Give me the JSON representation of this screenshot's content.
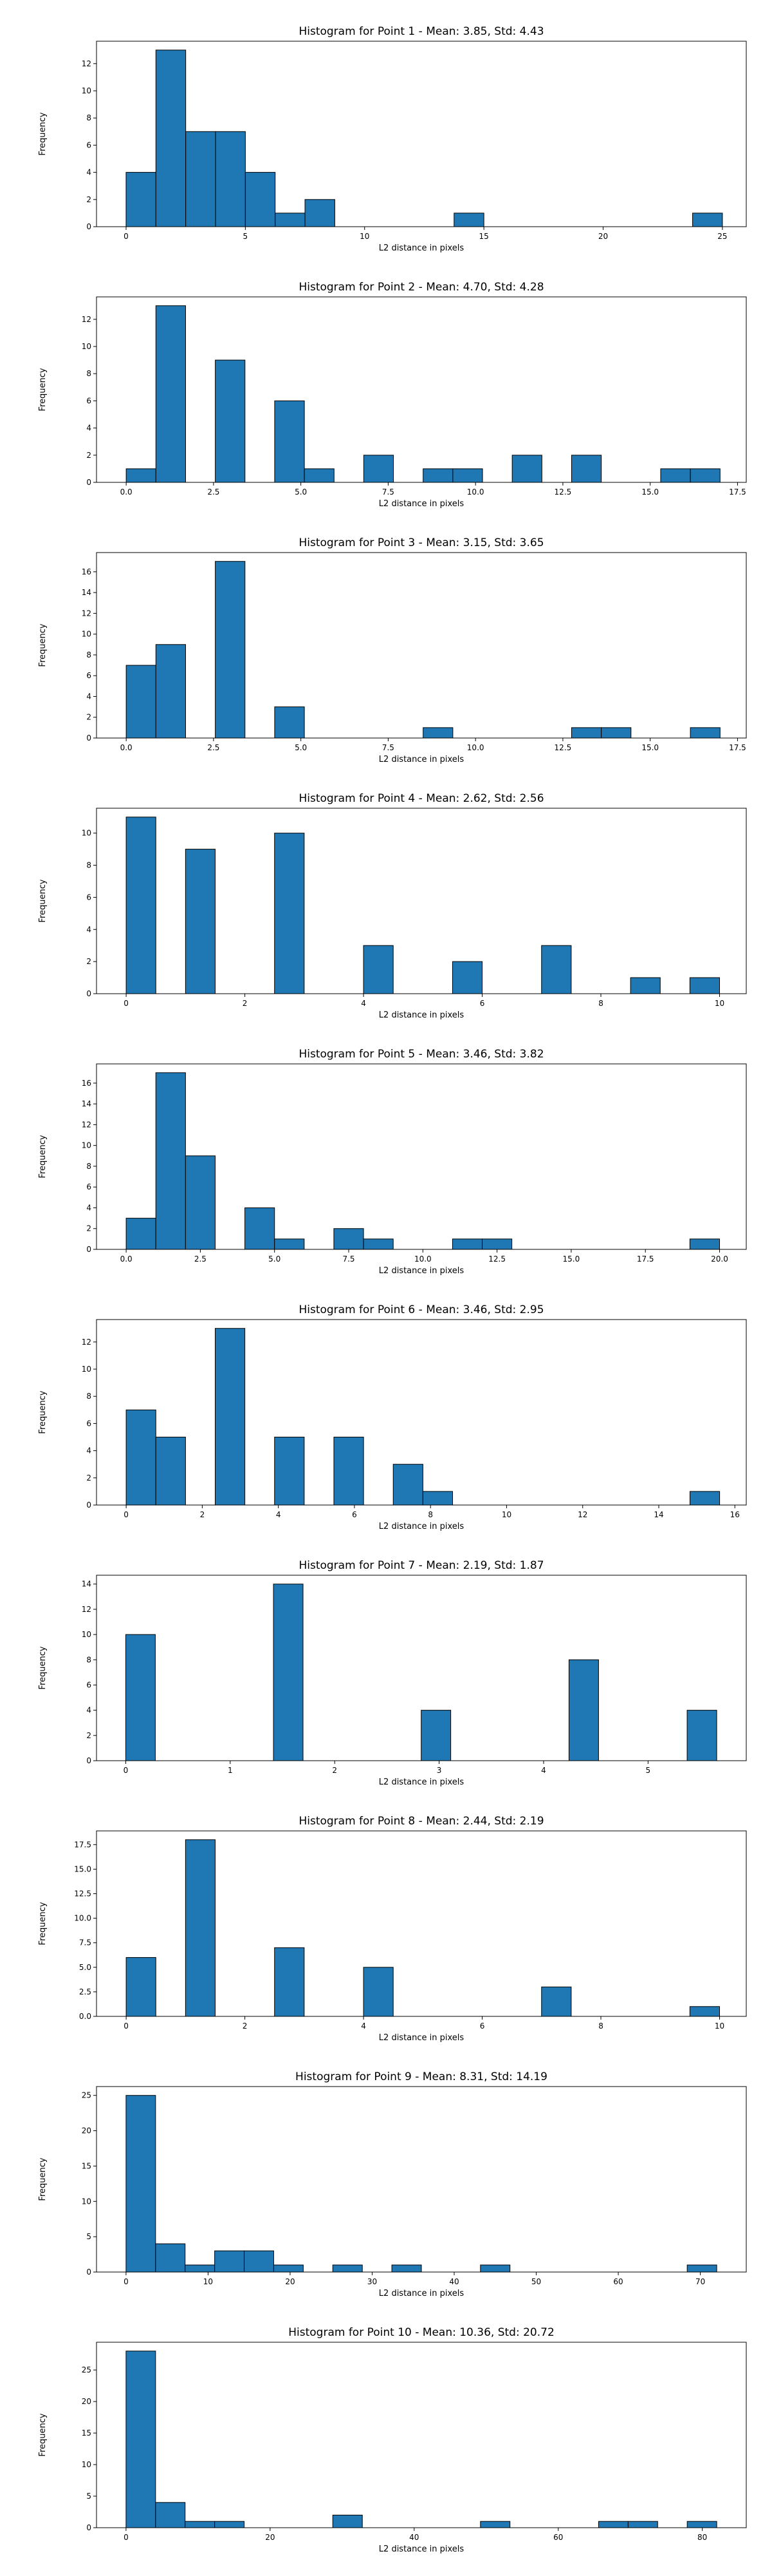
{
  "style": {
    "bar_color": "#1f77b4",
    "edge_color": "#000000",
    "background": "#ffffff"
  },
  "chart_data": [
    {
      "type": "bar",
      "title": "Histogram for Point 1 - Mean: 3.85, Std: 4.43",
      "xlabel": "L2 distance in pixels",
      "ylabel": "Frequency",
      "xlim": [
        -1.24,
        26.0
      ],
      "ylim": [
        0,
        13.65
      ],
      "xticks": [
        0,
        5,
        10,
        15,
        20,
        25
      ],
      "xtick_labels": [
        "0",
        "5",
        "10",
        "15",
        "20",
        "25"
      ],
      "yticks": [
        0,
        2,
        4,
        6,
        8,
        10,
        12
      ],
      "ytick_labels": [
        "0",
        "2",
        "4",
        "6",
        "8",
        "10",
        "12"
      ],
      "bins": [
        [
          0.0,
          1.25,
          4
        ],
        [
          1.25,
          2.5,
          13
        ],
        [
          2.5,
          3.75,
          7
        ],
        [
          3.75,
          5.0,
          7
        ],
        [
          5.0,
          6.25,
          4
        ],
        [
          6.25,
          7.5,
          1
        ],
        [
          7.5,
          8.75,
          2
        ],
        [
          13.75,
          15.0,
          1
        ],
        [
          23.75,
          25.0,
          1
        ]
      ]
    },
    {
      "type": "bar",
      "title": "Histogram for Point 2 - Mean: 4.70, Std: 4.28",
      "xlabel": "L2 distance in pixels",
      "ylabel": "Frequency",
      "xlim": [
        -0.85,
        17.75
      ],
      "ylim": [
        0,
        13.65
      ],
      "xticks": [
        0,
        2.5,
        5,
        7.5,
        10,
        12.5,
        15,
        17.5
      ],
      "xtick_labels": [
        "0.0",
        "2.5",
        "5.0",
        "7.5",
        "10.0",
        "12.5",
        "15.0",
        "17.5"
      ],
      "yticks": [
        0,
        2,
        4,
        6,
        8,
        10,
        12
      ],
      "ytick_labels": [
        "0",
        "2",
        "4",
        "6",
        "8",
        "10",
        "12"
      ],
      "bins": [
        [
          0.0,
          0.85,
          1
        ],
        [
          0.85,
          1.7,
          13
        ],
        [
          2.55,
          3.4,
          9
        ],
        [
          4.25,
          5.1,
          6
        ],
        [
          5.1,
          5.95,
          1
        ],
        [
          6.8,
          7.65,
          2
        ],
        [
          8.5,
          9.35,
          1
        ],
        [
          9.35,
          10.2,
          1
        ],
        [
          11.05,
          11.9,
          2
        ],
        [
          12.75,
          13.6,
          2
        ],
        [
          15.3,
          16.15,
          1
        ],
        [
          16.15,
          17.0,
          1
        ]
      ]
    },
    {
      "type": "bar",
      "title": "Histogram for Point 3 - Mean: 3.15, Std: 3.65",
      "xlabel": "L2 distance in pixels",
      "ylabel": "Frequency",
      "xlim": [
        -0.85,
        17.75
      ],
      "ylim": [
        0,
        17.85
      ],
      "xticks": [
        0,
        2.5,
        5,
        7.5,
        10,
        12.5,
        15,
        17.5
      ],
      "xtick_labels": [
        "0.0",
        "2.5",
        "5.0",
        "7.5",
        "10.0",
        "12.5",
        "15.0",
        "17.5"
      ],
      "yticks": [
        0,
        2,
        4,
        6,
        8,
        10,
        12,
        14,
        16
      ],
      "ytick_labels": [
        "0",
        "2",
        "4",
        "6",
        "8",
        "10",
        "12",
        "14",
        "16"
      ],
      "bins": [
        [
          0.0,
          0.85,
          7
        ],
        [
          0.85,
          1.7,
          9
        ],
        [
          2.55,
          3.4,
          17
        ],
        [
          4.25,
          5.1,
          3
        ],
        [
          8.5,
          9.35,
          1
        ],
        [
          12.75,
          13.6,
          1
        ],
        [
          13.6,
          14.45,
          1
        ],
        [
          16.15,
          17.0,
          1
        ]
      ]
    },
    {
      "type": "bar",
      "title": "Histogram for Point 4 - Mean: 2.62, Std: 2.56",
      "xlabel": "L2 distance in pixels",
      "ylabel": "Frequency",
      "xlim": [
        -0.5,
        10.45
      ],
      "ylim": [
        0,
        11.55
      ],
      "xticks": [
        0,
        2,
        4,
        6,
        8,
        10
      ],
      "xtick_labels": [
        "0",
        "2",
        "4",
        "6",
        "8",
        "10"
      ],
      "yticks": [
        0,
        2,
        4,
        6,
        8,
        10
      ],
      "ytick_labels": [
        "0",
        "2",
        "4",
        "6",
        "8",
        "10"
      ],
      "bins": [
        [
          0.0,
          0.5,
          11
        ],
        [
          1.0,
          1.5,
          9
        ],
        [
          2.5,
          3.0,
          10
        ],
        [
          4.0,
          4.5,
          3
        ],
        [
          5.5,
          6.0,
          2
        ],
        [
          7.0,
          7.5,
          3
        ],
        [
          8.5,
          9.0,
          1
        ],
        [
          9.5,
          10.0,
          1
        ]
      ]
    },
    {
      "type": "bar",
      "title": "Histogram for Point 5 - Mean: 3.46, Std: 3.82",
      "xlabel": "L2 distance in pixels",
      "ylabel": "Frequency",
      "xlim": [
        -1.0,
        20.9
      ],
      "ylim": [
        0,
        17.85
      ],
      "xticks": [
        0,
        2.5,
        5,
        7.5,
        10,
        12.5,
        15,
        17.5,
        20
      ],
      "xtick_labels": [
        "0.0",
        "2.5",
        "5.0",
        "7.5",
        "10.0",
        "12.5",
        "15.0",
        "17.5",
        "20.0"
      ],
      "yticks": [
        0,
        2,
        4,
        6,
        8,
        10,
        12,
        14,
        16
      ],
      "ytick_labels": [
        "0",
        "2",
        "4",
        "6",
        "8",
        "10",
        "12",
        "14",
        "16"
      ],
      "bins": [
        [
          0.0,
          1.0,
          3
        ],
        [
          1.0,
          2.0,
          17
        ],
        [
          2.0,
          3.0,
          9
        ],
        [
          4.0,
          5.0,
          4
        ],
        [
          5.0,
          6.0,
          1
        ],
        [
          7.0,
          8.0,
          2
        ],
        [
          8.0,
          9.0,
          1
        ],
        [
          11.0,
          12.0,
          1
        ],
        [
          12.0,
          13.0,
          1
        ],
        [
          19.0,
          20.0,
          1
        ]
      ]
    },
    {
      "type": "bar",
      "title": "Histogram for Point 6 - Mean: 3.46, Std: 2.95",
      "xlabel": "L2 distance in pixels",
      "ylabel": "Frequency",
      "xlim": [
        -0.78,
        16.3
      ],
      "ylim": [
        0,
        13.65
      ],
      "xticks": [
        0,
        2,
        4,
        6,
        8,
        10,
        12,
        14,
        16
      ],
      "xtick_labels": [
        "0",
        "2",
        "4",
        "6",
        "8",
        "10",
        "12",
        "14",
        "16"
      ],
      "yticks": [
        0,
        2,
        4,
        6,
        8,
        10,
        12
      ],
      "ytick_labels": [
        "0",
        "2",
        "4",
        "6",
        "8",
        "10",
        "12"
      ],
      "bins": [
        [
          0.0,
          0.78,
          7
        ],
        [
          0.78,
          1.56,
          5
        ],
        [
          2.34,
          3.12,
          13
        ],
        [
          3.9,
          4.68,
          5
        ],
        [
          5.46,
          6.24,
          5
        ],
        [
          7.02,
          7.8,
          3
        ],
        [
          7.8,
          8.58,
          1
        ],
        [
          14.82,
          15.6,
          1
        ]
      ]
    },
    {
      "type": "bar",
      "title": "Histogram for Point 7 - Mean: 2.19, Std: 1.87",
      "xlabel": "L2 distance in pixels",
      "ylabel": "Frequency",
      "xlim": [
        -0.28,
        5.94
      ],
      "ylim": [
        0,
        14.7
      ],
      "xticks": [
        0,
        1,
        2,
        3,
        4,
        5
      ],
      "xtick_labels": [
        "0",
        "1",
        "2",
        "3",
        "4",
        "5"
      ],
      "yticks": [
        0,
        2,
        4,
        6,
        8,
        10,
        12,
        14
      ],
      "ytick_labels": [
        "0",
        "2",
        "4",
        "6",
        "8",
        "10",
        "12",
        "14"
      ],
      "bins": [
        [
          0.0,
          0.283,
          10
        ],
        [
          1.414,
          1.697,
          14
        ],
        [
          2.828,
          3.111,
          4
        ],
        [
          4.243,
          4.526,
          8
        ],
        [
          5.374,
          5.657,
          4
        ]
      ]
    },
    {
      "type": "bar",
      "title": "Histogram for Point 8 - Mean: 2.44, Std: 2.19",
      "xlabel": "L2 distance in pixels",
      "ylabel": "Frequency",
      "xlim": [
        -0.5,
        10.45
      ],
      "ylim": [
        0,
        18.9
      ],
      "xticks": [
        0,
        2,
        4,
        6,
        8,
        10
      ],
      "xtick_labels": [
        "0",
        "2",
        "4",
        "6",
        "8",
        "10"
      ],
      "yticks": [
        0,
        2.5,
        5,
        7.5,
        10,
        12.5,
        15,
        17.5
      ],
      "ytick_labels": [
        "0.0",
        "2.5",
        "5.0",
        "7.5",
        "10.0",
        "12.5",
        "15.0",
        "17.5"
      ],
      "bins": [
        [
          0.0,
          0.5,
          6
        ],
        [
          1.0,
          1.5,
          18
        ],
        [
          2.5,
          3.0,
          7
        ],
        [
          4.0,
          4.5,
          5
        ],
        [
          7.0,
          7.5,
          3
        ],
        [
          9.5,
          10.0,
          1
        ]
      ]
    },
    {
      "type": "bar",
      "title": "Histogram for Point 9 - Mean: 8.31, Std: 14.19",
      "xlabel": "L2 distance in pixels",
      "ylabel": "Frequency",
      "xlim": [
        -3.6,
        75.6
      ],
      "ylim": [
        0,
        26.25
      ],
      "xticks": [
        0,
        10,
        20,
        30,
        40,
        50,
        60,
        70
      ],
      "xtick_labels": [
        "0",
        "10",
        "20",
        "30",
        "40",
        "50",
        "60",
        "70"
      ],
      "yticks": [
        0,
        5,
        10,
        15,
        20,
        25
      ],
      "ytick_labels": [
        "0",
        "5",
        "10",
        "15",
        "20",
        "25"
      ],
      "bins": [
        [
          0.0,
          3.6,
          25
        ],
        [
          3.6,
          7.2,
          4
        ],
        [
          7.2,
          10.8,
          1
        ],
        [
          10.8,
          14.4,
          3
        ],
        [
          14.4,
          18.0,
          3
        ],
        [
          18.0,
          21.6,
          1
        ],
        [
          25.2,
          28.8,
          1
        ],
        [
          32.4,
          36.0,
          1
        ],
        [
          43.2,
          46.8,
          1
        ],
        [
          68.4,
          72.0,
          1
        ]
      ]
    },
    {
      "type": "bar",
      "title": "Histogram for Point 10 - Mean: 10.36, Std: 20.72",
      "xlabel": "L2 distance in pixels",
      "ylabel": "Frequency",
      "xlim": [
        -4.1,
        86.1
      ],
      "ylim": [
        0,
        29.4
      ],
      "xticks": [
        0,
        20,
        40,
        60,
        80
      ],
      "xtick_labels": [
        "0",
        "20",
        "40",
        "60",
        "80"
      ],
      "yticks": [
        0,
        5,
        10,
        15,
        20,
        25
      ],
      "ytick_labels": [
        "0",
        "5",
        "10",
        "15",
        "20",
        "25"
      ],
      "bins": [
        [
          0.0,
          4.1,
          28
        ],
        [
          4.1,
          8.2,
          4
        ],
        [
          8.2,
          12.3,
          1
        ],
        [
          12.3,
          16.4,
          1
        ],
        [
          28.7,
          32.8,
          2
        ],
        [
          49.2,
          53.3,
          1
        ],
        [
          65.6,
          69.7,
          1
        ],
        [
          69.7,
          73.8,
          1
        ],
        [
          77.9,
          82.0,
          1
        ]
      ]
    }
  ]
}
